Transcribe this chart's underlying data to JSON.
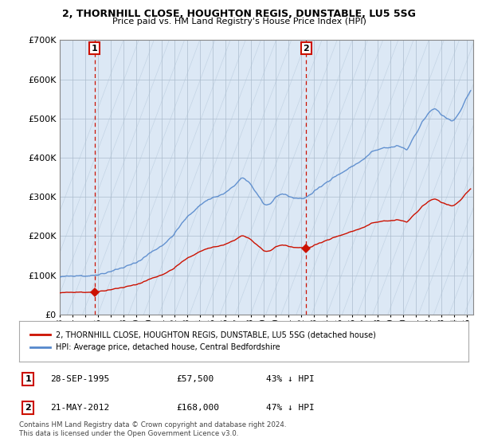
{
  "title_line1": "2, THORNHILL CLOSE, HOUGHTON REGIS, DUNSTABLE, LU5 5SG",
  "title_line2": "Price paid vs. HM Land Registry's House Price Index (HPI)",
  "ylim": [
    0,
    700000
  ],
  "yticks": [
    0,
    100000,
    200000,
    300000,
    400000,
    500000,
    600000,
    700000
  ],
  "ytick_labels": [
    "£0",
    "£100K",
    "£200K",
    "£300K",
    "£400K",
    "£500K",
    "£600K",
    "£700K"
  ],
  "xlim_start": 1993.0,
  "xlim_end": 2025.5,
  "background_color": "#ffffff",
  "plot_bg_color": "#dce8f5",
  "hpi_color": "#5588cc",
  "price_color": "#cc1100",
  "sale1_year": 1995.74,
  "sale1_price": 57500,
  "sale2_year": 2012.38,
  "sale2_price": 168000,
  "legend_label1": "2, THORNHILL CLOSE, HOUGHTON REGIS, DUNSTABLE, LU5 5SG (detached house)",
  "legend_label2": "HPI: Average price, detached house, Central Bedfordshire",
  "table_row1": [
    "1",
    "28-SEP-1995",
    "£57,500",
    "43% ↓ HPI"
  ],
  "table_row2": [
    "2",
    "21-MAY-2012",
    "£168,000",
    "47% ↓ HPI"
  ],
  "footnote": "Contains HM Land Registry data © Crown copyright and database right 2024.\nThis data is licensed under the Open Government Licence v3.0.",
  "grid_color": "#aabbcc",
  "hatch_area_end": 1995.74
}
